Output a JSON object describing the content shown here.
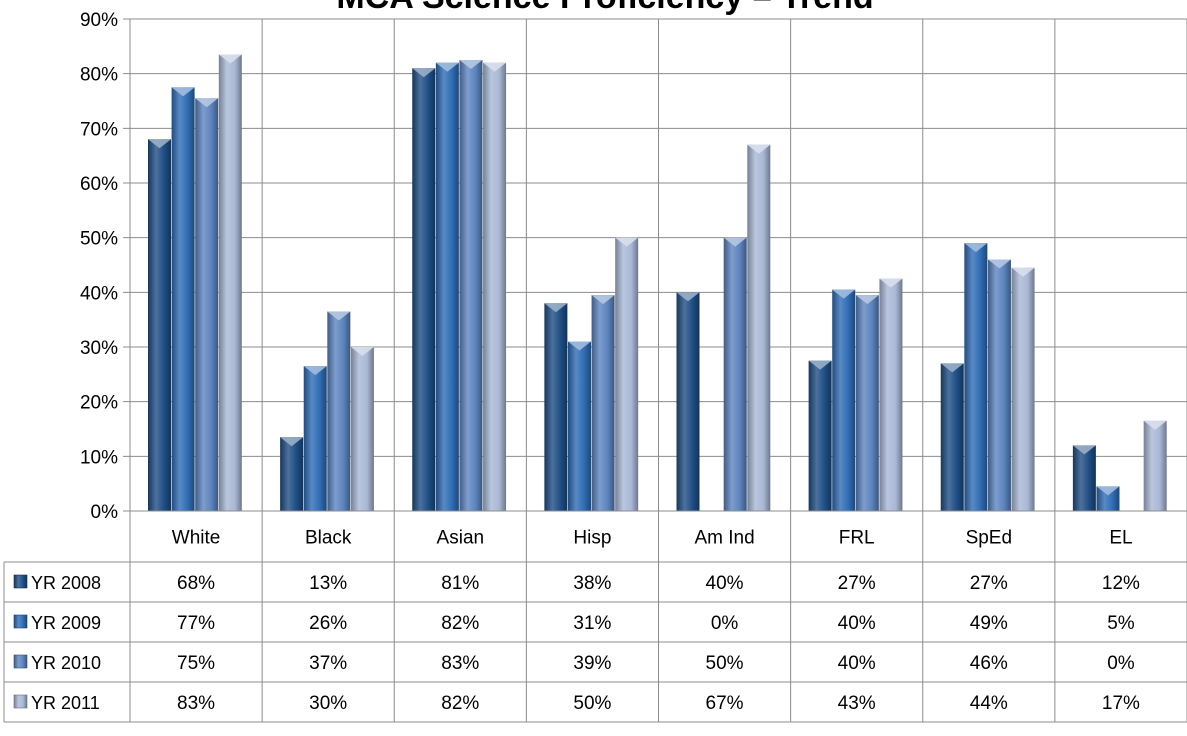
{
  "chart_data": {
    "type": "bar",
    "title": "MCA Science Proficiency – Trend",
    "categories": [
      "White",
      "Black",
      "Asian",
      "Hisp",
      "Am Ind",
      "FRL",
      "SpEd",
      "EL"
    ],
    "ylim": [
      0,
      90
    ],
    "yticks": [
      "0%",
      "10%",
      "20%",
      "30%",
      "40%",
      "50%",
      "60%",
      "70%",
      "80%",
      "90%"
    ],
    "grid": true,
    "legend": "data-table-left",
    "series": [
      {
        "name": "YR 2008",
        "color": "#1f4e85",
        "values": [
          68,
          13.5,
          81,
          38,
          40,
          27.5,
          27,
          12
        ],
        "labels": [
          "68%",
          "13%",
          "81%",
          "38%",
          "40%",
          "27%",
          "27%",
          "12%"
        ]
      },
      {
        "name": "YR 2009",
        "color": "#2f6db5",
        "values": [
          77.5,
          26.5,
          82,
          31,
          0,
          40.5,
          49,
          4.5
        ],
        "labels": [
          "77%",
          "26%",
          "82%",
          "31%",
          "0%",
          "40%",
          "49%",
          "5%"
        ]
      },
      {
        "name": "YR 2010",
        "color": "#5c84bf",
        "values": [
          75.5,
          36.5,
          82.5,
          39.5,
          50,
          39.5,
          46,
          0
        ],
        "labels": [
          "75%",
          "37%",
          "83%",
          "39%",
          "50%",
          "40%",
          "46%",
          "0%"
        ]
      },
      {
        "name": "YR 2011",
        "color": "#a9b8d6",
        "values": [
          83.5,
          30,
          82,
          50,
          67,
          42.5,
          44.5,
          16.5
        ],
        "labels": [
          "83%",
          "30%",
          "82%",
          "50%",
          "67%",
          "43%",
          "44%",
          "17%"
        ]
      }
    ]
  }
}
